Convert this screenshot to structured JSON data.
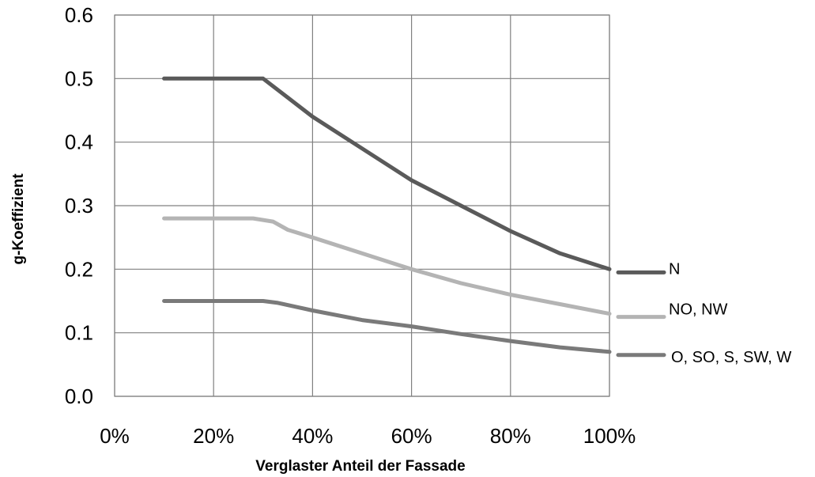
{
  "chart_data": {
    "type": "line",
    "title": "",
    "xlabel": "Verglaster Anteil der Fassade",
    "ylabel": "g-Koeffizient",
    "xlim": [
      0,
      100
    ],
    "ylim": [
      0,
      0.6
    ],
    "x_ticks": [
      0,
      20,
      40,
      60,
      80,
      100
    ],
    "x_tick_labels": [
      "0%",
      "20%",
      "40%",
      "60%",
      "80%",
      "100%"
    ],
    "y_ticks": [
      0,
      0.1,
      0.2,
      0.3,
      0.4,
      0.5,
      0.6
    ],
    "y_tick_labels": [
      "0.0",
      "0.1",
      "0.2",
      "0.3",
      "0.4",
      "0.5",
      "0.6"
    ],
    "grid": true,
    "legend_position": "right",
    "series": [
      {
        "name": "N",
        "color": "#5a5a5a",
        "x": [
          10,
          20,
          30,
          35,
          40,
          50,
          60,
          70,
          80,
          90,
          100
        ],
        "y": [
          0.5,
          0.5,
          0.5,
          0.47,
          0.44,
          0.39,
          0.34,
          0.3,
          0.26,
          0.225,
          0.2
        ]
      },
      {
        "name": "NO, NW",
        "color": "#b4b4b4",
        "x": [
          10,
          20,
          28,
          32,
          35,
          40,
          50,
          60,
          70,
          80,
          90,
          100
        ],
        "y": [
          0.28,
          0.28,
          0.28,
          0.275,
          0.262,
          0.25,
          0.225,
          0.2,
          0.178,
          0.16,
          0.145,
          0.13
        ]
      },
      {
        "name": "O, SO, S, SW, W",
        "color": "#7a7a7a",
        "x": [
          10,
          20,
          30,
          33,
          40,
          50,
          60,
          70,
          80,
          90,
          100
        ],
        "y": [
          0.15,
          0.15,
          0.15,
          0.147,
          0.135,
          0.12,
          0.11,
          0.098,
          0.087,
          0.077,
          0.07
        ]
      }
    ]
  }
}
